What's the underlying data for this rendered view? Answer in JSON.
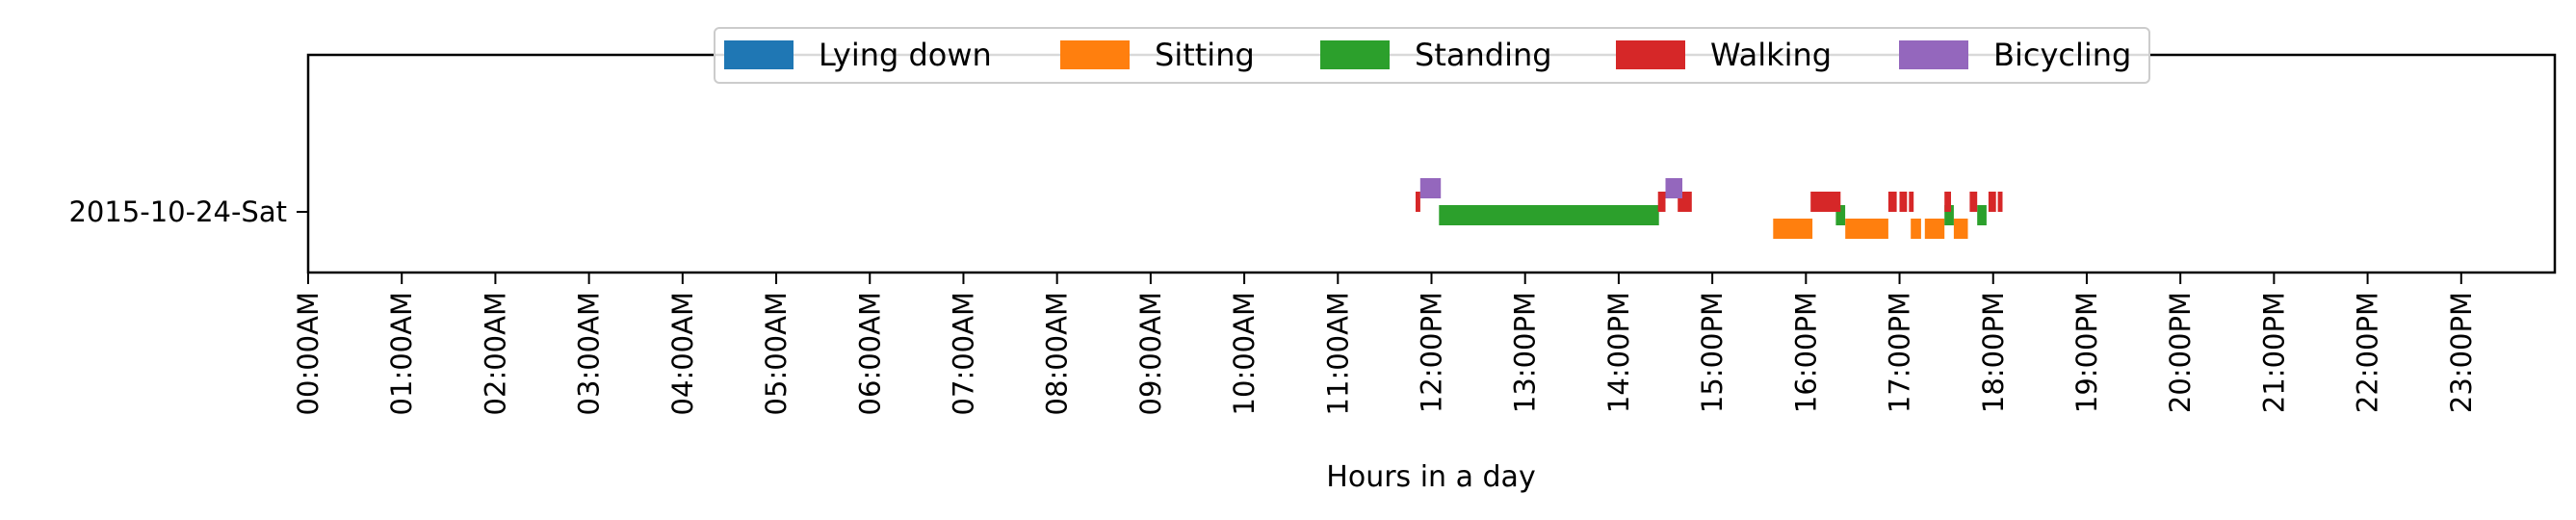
{
  "chart_data": {
    "type": "timeline",
    "xlabel": "Hours in a day",
    "ylabel": "",
    "xlim": [
      0,
      24
    ],
    "x_ticks": [
      {
        "value": 0,
        "label": "00:00AM"
      },
      {
        "value": 1,
        "label": "01:00AM"
      },
      {
        "value": 2,
        "label": "02:00AM"
      },
      {
        "value": 3,
        "label": "03:00AM"
      },
      {
        "value": 4,
        "label": "04:00AM"
      },
      {
        "value": 5,
        "label": "05:00AM"
      },
      {
        "value": 6,
        "label": "06:00AM"
      },
      {
        "value": 7,
        "label": "07:00AM"
      },
      {
        "value": 8,
        "label": "08:00AM"
      },
      {
        "value": 9,
        "label": "09:00AM"
      },
      {
        "value": 10,
        "label": "10:00AM"
      },
      {
        "value": 11,
        "label": "11:00AM"
      },
      {
        "value": 12,
        "label": "12:00PM"
      },
      {
        "value": 13,
        "label": "13:00PM"
      },
      {
        "value": 14,
        "label": "14:00PM"
      },
      {
        "value": 15,
        "label": "15:00PM"
      },
      {
        "value": 16,
        "label": "16:00PM"
      },
      {
        "value": 17,
        "label": "17:00PM"
      },
      {
        "value": 18,
        "label": "18:00PM"
      },
      {
        "value": 19,
        "label": "19:00PM"
      },
      {
        "value": 20,
        "label": "20:00PM"
      },
      {
        "value": 21,
        "label": "21:00PM"
      },
      {
        "value": 22,
        "label": "22:00PM"
      },
      {
        "value": 23,
        "label": "23:00PM"
      }
    ],
    "y_categories": [
      "2015-10-24-Sat"
    ],
    "legend_position": "top-center",
    "grid": false,
    "series": [
      {
        "name": "Lying down",
        "color": "#1f77b4",
        "row_offset": 0,
        "intervals": []
      },
      {
        "name": "Sitting",
        "color": "#ff7f0e",
        "row_offset": -1,
        "intervals": [
          [
            15.65,
            16.07
          ],
          [
            16.42,
            16.88
          ],
          [
            17.12,
            17.23
          ],
          [
            17.27,
            17.48
          ],
          [
            17.58,
            17.73
          ]
        ]
      },
      {
        "name": "Standing",
        "color": "#2ca02c",
        "row_offset": 0,
        "intervals": [
          [
            12.08,
            14.43
          ],
          [
            16.32,
            16.42
          ],
          [
            17.48,
            17.58
          ],
          [
            17.83,
            17.93
          ]
        ]
      },
      {
        "name": "Walking",
        "color": "#d62728",
        "row_offset": 1,
        "intervals": [
          [
            11.83,
            11.88
          ],
          [
            14.42,
            14.5
          ],
          [
            14.63,
            14.78
          ],
          [
            16.05,
            16.37
          ],
          [
            16.88,
            16.97
          ],
          [
            17.0,
            17.08
          ],
          [
            17.1,
            17.15
          ],
          [
            17.48,
            17.55
          ],
          [
            17.75,
            17.83
          ],
          [
            17.95,
            18.03
          ],
          [
            18.05,
            18.1
          ]
        ]
      },
      {
        "name": "Bicycling",
        "color": "#9467bd",
        "row_offset": 2,
        "intervals": [
          [
            11.88,
            12.1
          ],
          [
            14.5,
            14.68
          ]
        ]
      }
    ]
  }
}
